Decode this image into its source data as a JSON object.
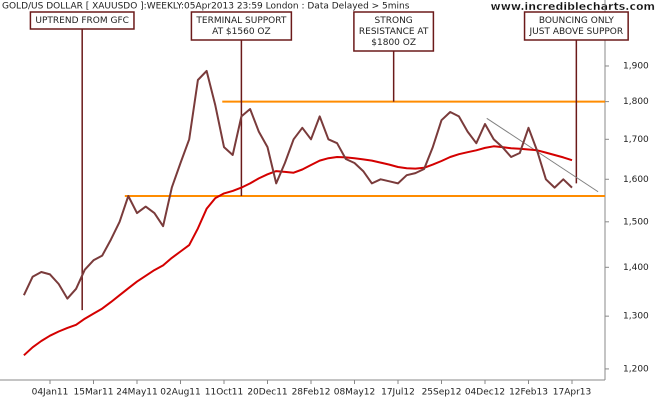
{
  "chart_data": {
    "type": "line",
    "title": "GOLD/US DOLLAR [ XAUUSDO ]:WEEKLY:05Apr2013 23:59 London : Data Delayed > 5mins",
    "watermark": "www.incrediblecharts.com",
    "log_scale": true,
    "categories": [
      null,
      null,
      null,
      "04Jan11",
      null,
      null,
      null,
      null,
      "15Mar11",
      null,
      null,
      null,
      null,
      "24May11",
      null,
      null,
      null,
      null,
      "02Aug11",
      null,
      null,
      null,
      null,
      "11Oct11",
      null,
      null,
      null,
      null,
      "20Dec11",
      null,
      null,
      null,
      null,
      "28Feb12",
      null,
      null,
      null,
      null,
      "08May12",
      null,
      null,
      null,
      null,
      "17Jul12",
      null,
      null,
      null,
      null,
      "25Sep12",
      null,
      null,
      null,
      null,
      "04Dec12",
      null,
      null,
      null,
      null,
      "12Feb13",
      null,
      null,
      null,
      null,
      "17Apr13"
    ],
    "series": [
      {
        "color": "#7a3b3b",
        "values": [
          1342,
          1380,
          1390,
          1385,
          1365,
          1335,
          1355,
          1395,
          1415,
          1425,
          1460,
          1500,
          1560,
          1520,
          1535,
          1520,
          1490,
          1580,
          1640,
          1700,
          1860,
          1886,
          1790,
          1680,
          1660,
          1760,
          1780,
          1720,
          1680,
          1590,
          1640,
          1700,
          1730,
          1700,
          1760,
          1700,
          1690,
          1650,
          1640,
          1620,
          1590,
          1600,
          1595,
          1590,
          1610,
          1615,
          1625,
          1680,
          1750,
          1772,
          1760,
          1720,
          1690,
          1740,
          1700,
          1680,
          1655,
          1665,
          1730,
          1670,
          1600,
          1580,
          1600,
          1580
        ]
      },
      {
        "color": "#d40000",
        "values": [
          1225,
          1240,
          1252,
          1262,
          1270,
          1277,
          1283,
          1295,
          1305,
          1315,
          1328,
          1342,
          1356,
          1370,
          1382,
          1394,
          1404,
          1420,
          1434,
          1448,
          1485,
          1530,
          1555,
          1566,
          1572,
          1580,
          1590,
          1602,
          1612,
          1620,
          1618,
          1616,
          1624,
          1635,
          1646,
          1652,
          1655,
          1654,
          1652,
          1649,
          1646,
          1641,
          1636,
          1630,
          1627,
          1626,
          1628,
          1636,
          1645,
          1655,
          1662,
          1667,
          1672,
          1678,
          1682,
          1680,
          1677,
          1676,
          1674,
          1672,
          1666,
          1660,
          1654,
          1647
        ]
      }
    ],
    "levels": [
      {
        "value": 1560,
        "x": 11.6,
        "color": "#ff8c00"
      },
      {
        "value": 1800,
        "x": 22.8,
        "color": "#ff8c00"
      }
    ],
    "trendline": {
      "x": [
        53.2,
        66
      ],
      "values": [
        1755,
        1570
      ],
      "color": "#808080"
    },
    "annotations": [
      {
        "text": [
          "UPTREND FROM GFC"
        ],
        "x": 6.7,
        "value": 1312
      },
      {
        "text": [
          "TERMINAL SUPPORT",
          "AT $1560 OZ"
        ],
        "x": 25,
        "value": 1560
      },
      {
        "text": [
          "STRONG",
          "RESISTANCE AT",
          "$1800 OZ"
        ],
        "x": 42.5,
        "value": 1800
      },
      {
        "text": [
          "BOUNCING ONLY",
          "JUST ABOVE SUPPOR"
        ],
        "x": 63.5,
        "value": 1590
      }
    ],
    "ylim": [
      1180,
      2100
    ],
    "yticks": [
      {
        "value": 1200,
        "label": "1,200"
      },
      {
        "value": 1300,
        "label": "1,300"
      },
      {
        "value": 1400,
        "label": "1,400"
      },
      {
        "value": 1500,
        "label": "1,500"
      },
      {
        "value": 1600,
        "label": "1,600"
      },
      {
        "value": 1700,
        "label": "1,700"
      },
      {
        "value": 1800,
        "label": "1,800"
      },
      {
        "value": 1900,
        "label": "1,900"
      }
    ]
  }
}
